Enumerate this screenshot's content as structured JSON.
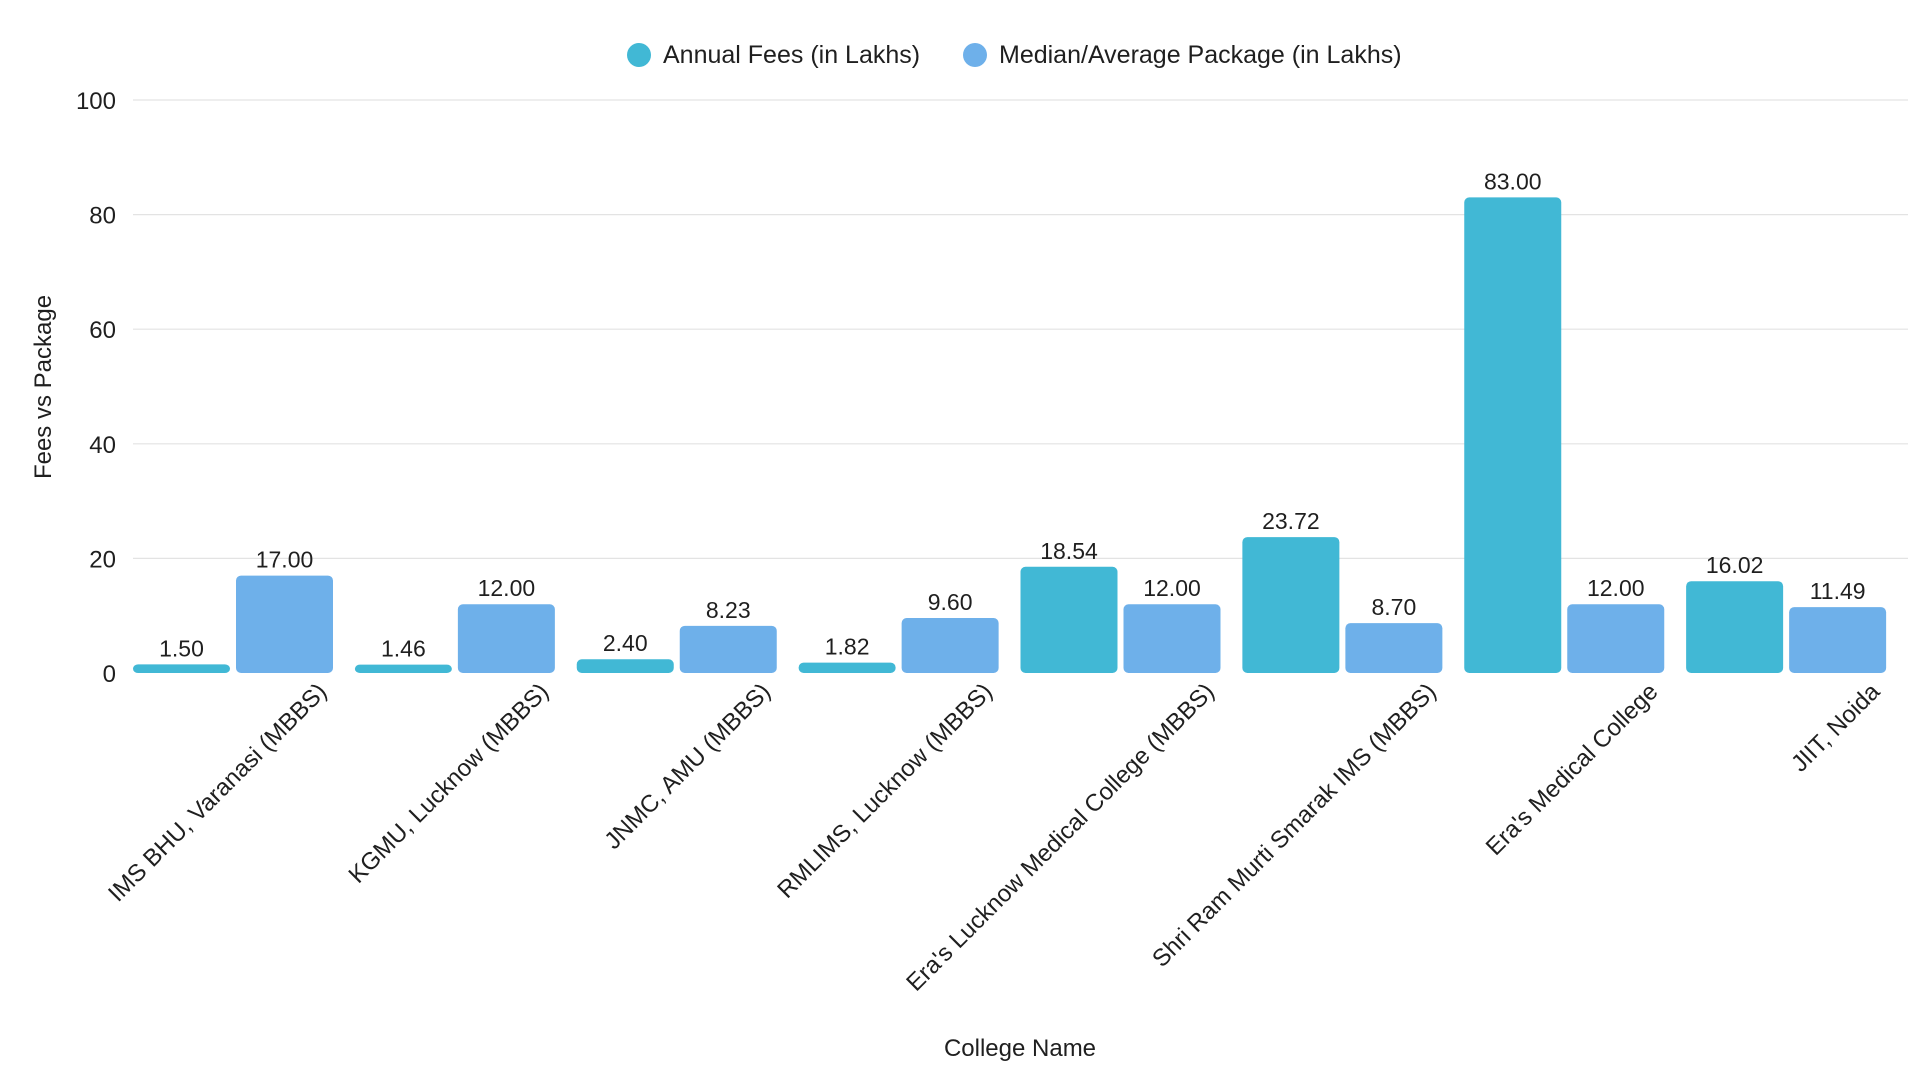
{
  "chart_data": {
    "type": "bar",
    "title": "",
    "xlabel": "College Name",
    "ylabel": "Fees vs Package",
    "ylim": [
      0,
      100
    ],
    "yticks": [
      0,
      20,
      40,
      60,
      80,
      100
    ],
    "grid": true,
    "legend_position": "top-center",
    "categories": [
      "IMS BHU, Varanasi (MBBS)",
      "KGMU, Lucknow (MBBS)",
      "JNMC, AMU (MBBS)",
      "RMLIMS, Lucknow (MBBS)",
      "Era's Lucknow Medical College (MBBS)",
      "Shri Ram Murti Smarak IMS (MBBS)",
      "Era's Medical College",
      "JIIT, Noida"
    ],
    "series": [
      {
        "name": "Annual Fees (in Lakhs)",
        "color": "#41b8d5",
        "values": [
          1.5,
          1.46,
          2.4,
          1.82,
          18.54,
          23.72,
          83.0,
          16.02
        ],
        "labels": [
          "1.50",
          "1.46",
          "2.40",
          "1.82",
          "18.54",
          "23.72",
          "83.00",
          "16.02"
        ]
      },
      {
        "name": "Median/Average Package (in Lakhs)",
        "color": "#6eb0ea",
        "values": [
          17.0,
          12.0,
          8.23,
          9.6,
          12.0,
          8.7,
          12.0,
          11.49
        ],
        "labels": [
          "17.00",
          "12.00",
          "8.23",
          "9.60",
          "12.00",
          "8.70",
          "12.00",
          "11.49"
        ]
      }
    ]
  }
}
